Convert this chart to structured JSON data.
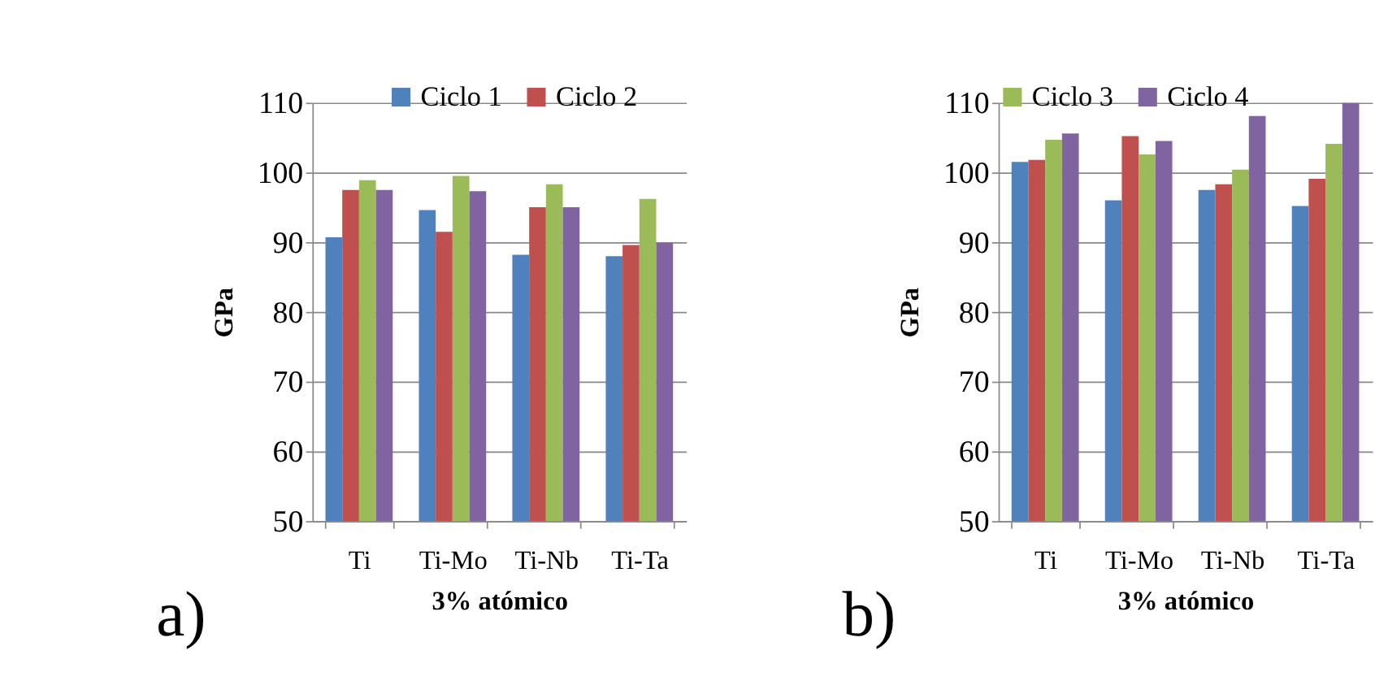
{
  "chart_data": [
    {
      "type": "bar",
      "categories": [
        "Ti",
        "Ti-Mo",
        "Ti-Nb",
        "Ti-Ta"
      ],
      "xlabel": "3% atómico",
      "ylabel": "GPa",
      "ylim": [
        50,
        110
      ],
      "yticks": [
        50,
        60,
        70,
        80,
        90,
        100,
        110
      ],
      "grid": "y",
      "legend": "top",
      "annotations": [
        "a)"
      ],
      "series": [
        {
          "name": "Ciclo 1",
          "color": "#4f81bd",
          "values": [
            90.7,
            94.6,
            88.2,
            88.0
          ]
        },
        {
          "name": "Ciclo 2",
          "color": "#c0504d",
          "values": [
            97.5,
            91.5,
            95.0,
            89.6
          ]
        },
        {
          "color": "#9bbb59",
          "values": [
            98.9,
            99.5,
            98.3,
            96.2
          ]
        },
        {
          "color": "#8064a2",
          "values": [
            97.5,
            97.3,
            95.0,
            89.9
          ]
        }
      ]
    },
    {
      "type": "bar",
      "categories": [
        "Ti",
        "Ti-Mo",
        "Ti-Nb",
        "Ti-Ta"
      ],
      "xlabel": "3% atómico",
      "ylabel": "GPa",
      "ylim": [
        50,
        110
      ],
      "yticks": [
        50,
        60,
        70,
        80,
        90,
        100,
        110
      ],
      "grid": "y",
      "legend": "top",
      "annotations": [
        "b)"
      ],
      "series": [
        {
          "color": "#4f81bd",
          "values": [
            101.5,
            96.0,
            97.5,
            95.2
          ]
        },
        {
          "color": "#c0504d",
          "values": [
            101.8,
            105.2,
            98.3,
            99.1
          ]
        },
        {
          "name": "Ciclo 3",
          "color": "#9bbb59",
          "values": [
            104.7,
            102.6,
            100.4,
            104.1
          ]
        },
        {
          "name": "Ciclo 4",
          "color": "#8064a2",
          "values": [
            105.6,
            104.5,
            108.1,
            110
          ]
        }
      ]
    }
  ]
}
